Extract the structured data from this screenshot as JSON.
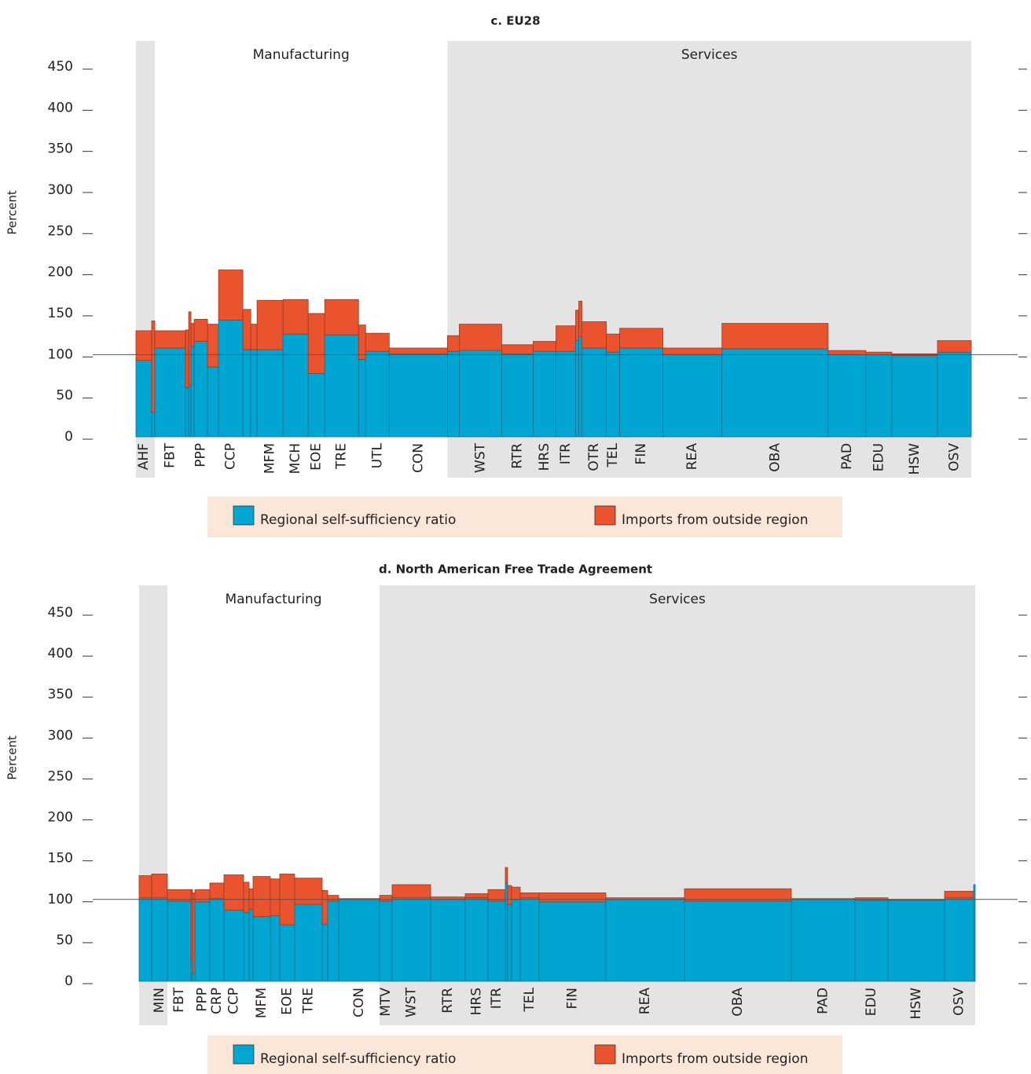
{
  "chart_data": [
    {
      "type": "marimekko",
      "title": "c. EU28",
      "y_label": "Percent",
      "annotations": [
        "Manufacturing",
        "Services"
      ],
      "categories": [
        "AHF",
        null,
        "FBT",
        null,
        null,
        null,
        "PPP",
        null,
        "CCP",
        null,
        null,
        "MFM",
        "MCH",
        "EOE",
        "TRE",
        null,
        "UTL",
        "CON",
        null,
        "WST",
        "RTR",
        "HRS",
        "ITR",
        null,
        null,
        "OTR",
        "TEL",
        "FIN",
        "REA",
        "OBA",
        "PAD",
        "EDU",
        "HSW",
        "OSV"
      ],
      "widths": [
        20,
        4,
        39,
        4,
        3,
        4,
        17,
        14,
        31,
        10,
        8,
        33,
        32,
        21,
        43,
        9,
        30,
        74,
        15,
        54,
        40,
        29,
        25,
        4,
        4,
        31,
        17,
        55,
        75,
        135,
        48,
        33,
        58,
        43
      ],
      "shaded": [
        true,
        true,
        false,
        false,
        false,
        false,
        false,
        false,
        false,
        false,
        false,
        false,
        false,
        false,
        false,
        false,
        false,
        false,
        true,
        true,
        true,
        true,
        true,
        true,
        true,
        true,
        true,
        true,
        true,
        true,
        true,
        true,
        true,
        true
      ],
      "series": [
        {
          "name": "Regional self-sufficiency ratio",
          "color": "#00a5d2",
          "values": [
            93,
            30,
            108,
            60,
            62,
            110,
            116,
            85,
            142,
            106,
            106,
            106,
            125,
            77,
            124,
            94,
            104,
            101,
            104,
            105,
            101,
            104,
            104,
            117,
            122,
            108,
            103,
            108,
            100,
            107,
            100,
            100,
            99,
            103
          ]
        },
        {
          "name": "Imports from outside region",
          "color": "#e9532d",
          "values": [
            36,
            111,
            21,
            70,
            90,
            28,
            27,
            52,
            61,
            49,
            31,
            60,
            42,
            73,
            43,
            42,
            22,
            7,
            19,
            32,
            11,
            12,
            31,
            37,
            43,
            32,
            22,
            24,
            8,
            31,
            5,
            3,
            2,
            14
          ]
        }
      ],
      "ylim": [
        0,
        450
      ],
      "yticks": [
        0,
        50,
        100,
        150,
        200,
        250,
        300,
        350,
        400,
        450
      ],
      "hline": 100
    },
    {
      "type": "marimekko",
      "title": "d. North American Free Trade Agreement",
      "y_label": "Percent",
      "annotations": [
        "Manufacturing",
        "Services"
      ],
      "categories": [
        null,
        "MIN",
        "FBT",
        null,
        null,
        "PPP",
        "CRP",
        "CCP",
        null,
        null,
        "MFM",
        null,
        "EOE",
        "TRE",
        null,
        null,
        "CON",
        "MTV",
        "WST",
        "RTR",
        "HRS",
        "ITR",
        null,
        null,
        null,
        "TEL",
        "FIN",
        "REA",
        "OBA",
        "PAD",
        "EDU",
        "HSW",
        "OSV",
        null
      ],
      "widths": [
        16,
        20,
        30,
        2,
        3,
        19,
        18,
        25,
        7,
        5,
        22,
        12,
        19,
        35,
        7,
        14,
        52,
        16,
        49,
        44,
        29,
        22,
        3,
        5,
        11,
        24,
        85,
        100,
        136,
        81,
        42,
        72,
        37,
        2
      ],
      "shaded": [
        true,
        true,
        false,
        false,
        false,
        false,
        false,
        false,
        false,
        false,
        false,
        false,
        false,
        false,
        false,
        false,
        false,
        true,
        true,
        true,
        true,
        true,
        true,
        true,
        true,
        true,
        true,
        true,
        true,
        true,
        true,
        true,
        true,
        true
      ],
      "series": [
        {
          "name": "Regional self-sufficiency ratio",
          "color": "#00a5d2",
          "values": [
            102,
            102,
            98,
            25,
            10,
            97,
            101,
            87,
            84,
            88,
            79,
            80,
            69,
            94,
            70,
            98,
            100,
            98,
            102,
            100,
            102,
            98,
            120,
            94,
            100,
            102,
            97,
            100,
            98,
            100,
            99,
            99,
            102,
            118
          ]
        },
        {
          "name": "Imports from outside region",
          "color": "#e9532d",
          "values": [
            27,
            29,
            14,
            87,
            98,
            15,
            19,
            43,
            37,
            25,
            49,
            45,
            62,
            32,
            41,
            7,
            1,
            7,
            16,
            3,
            5,
            14,
            19,
            23,
            15,
            6,
            11,
            2,
            15,
            1,
            3,
            1,
            8,
            0
          ]
        }
      ],
      "ylim": [
        0,
        450
      ],
      "yticks": [
        0,
        50,
        100,
        150,
        200,
        250,
        300,
        350,
        400,
        450
      ],
      "hline": 100
    }
  ]
}
